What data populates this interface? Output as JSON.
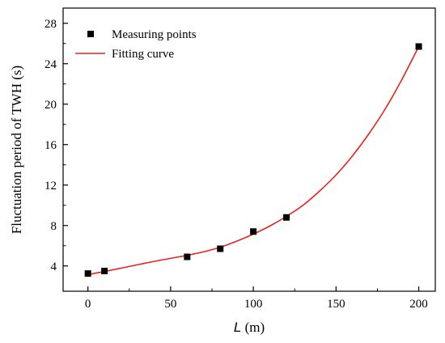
{
  "chart_data": {
    "type": "scatter",
    "title": "",
    "xlabel_italic": "L",
    "xlabel_unit": " (m)",
    "ylabel": "Fluctuation period of TWH (s)",
    "xlim": [
      -15,
      210
    ],
    "ylim": [
      1.5,
      29.5
    ],
    "xticks": [
      0,
      50,
      100,
      150,
      200
    ],
    "yticks": [
      4,
      8,
      12,
      16,
      20,
      24,
      28
    ],
    "grid": false,
    "legend_position": "top-left",
    "series": [
      {
        "name": "Measuring points",
        "kind": "points",
        "color": "#000000",
        "x": [
          0,
          10,
          60,
          80,
          100,
          120,
          200
        ],
        "y": [
          3.25,
          3.5,
          4.9,
          5.7,
          7.4,
          8.8,
          25.7
        ]
      },
      {
        "name": "Fitting curve",
        "kind": "line",
        "color": "#e8231f",
        "x": [
          0,
          10,
          20,
          30,
          40,
          50,
          60,
          70,
          80,
          90,
          100,
          110,
          120,
          130,
          140,
          150,
          160,
          170,
          180,
          190,
          200
        ],
        "y": [
          3.15,
          3.45,
          3.78,
          4.12,
          4.45,
          4.75,
          5.05,
          5.4,
          5.85,
          6.45,
          7.15,
          7.95,
          8.9,
          10.0,
          11.4,
          13.0,
          14.9,
          17.1,
          19.6,
          22.5,
          25.7
        ]
      }
    ]
  }
}
